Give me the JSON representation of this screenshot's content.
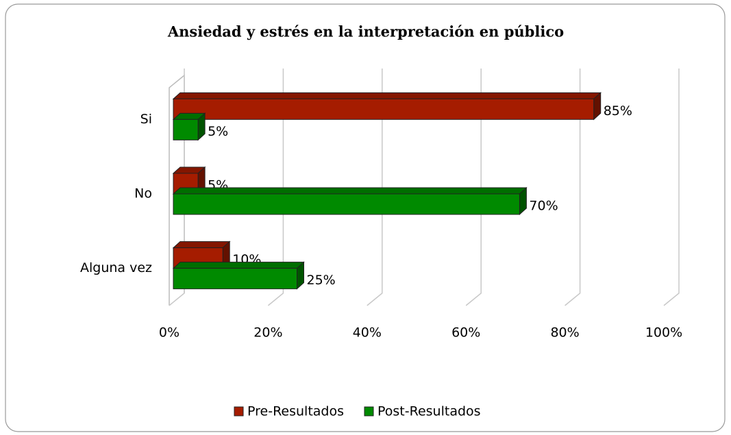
{
  "chart_data": {
    "type": "bar3d_horizontal",
    "title": "Ansiedad y estrés en la interpretación en público",
    "categories": [
      "Si",
      "No",
      "Alguna vez"
    ],
    "series": [
      {
        "name": "Pre-Resultados",
        "color": "#a51c00",
        "values": [
          85,
          5,
          10
        ],
        "value_labels": [
          "85%",
          "5%",
          "10%"
        ]
      },
      {
        "name": "Post-Resultados",
        "color": "#008a00",
        "values": [
          5,
          70,
          25
        ],
        "value_labels": [
          "5%",
          "70%",
          "25%"
        ]
      }
    ],
    "xlim": [
      0,
      100
    ],
    "xticks": [
      {
        "value": 0,
        "label": "0%"
      },
      {
        "value": 20,
        "label": "20%"
      },
      {
        "value": 40,
        "label": "40%"
      },
      {
        "value": 60,
        "label": "60%"
      },
      {
        "value": 80,
        "label": "80%"
      },
      {
        "value": 100,
        "label": "100%"
      }
    ],
    "grid": true,
    "legend": "bottom"
  }
}
